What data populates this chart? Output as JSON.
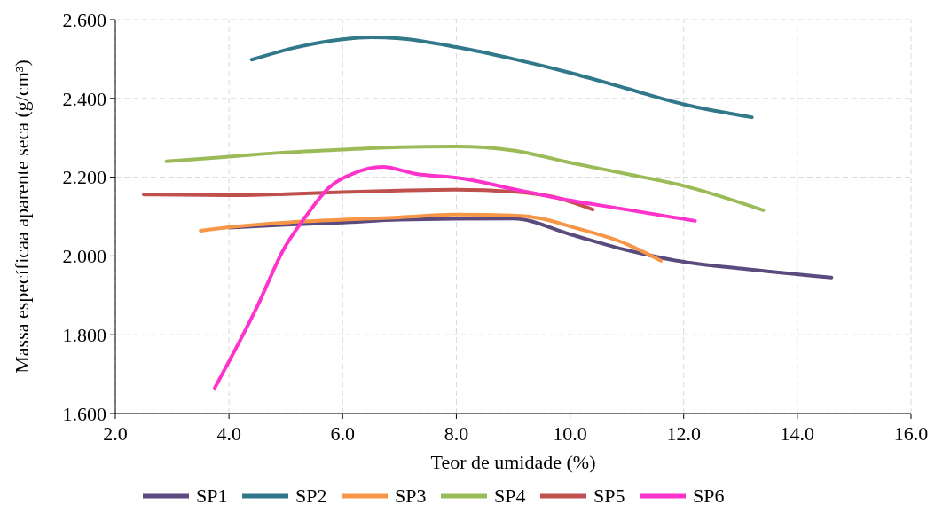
{
  "chart_data": {
    "type": "line",
    "xlabel": "Teor de umidade (%)",
    "ylabel": "Massa  específicaa aparente seca (g/cm³)",
    "xlim": [
      2,
      16
    ],
    "xticks": [
      {
        "value": 2,
        "label": "2.0"
      },
      {
        "value": 4,
        "label": "4.0"
      },
      {
        "value": 6,
        "label": "6.0"
      },
      {
        "value": 8,
        "label": "8.0"
      },
      {
        "value": 10,
        "label": "10.0"
      },
      {
        "value": 12,
        "label": "12.0"
      },
      {
        "value": 14,
        "label": "14.0"
      },
      {
        "value": 16,
        "label": "16.0"
      }
    ],
    "ylim": [
      1.6,
      2.6
    ],
    "yticks": [
      {
        "value": 1.6,
        "label": "1.600"
      },
      {
        "value": 1.8,
        "label": "1.800"
      },
      {
        "value": 2.0,
        "label": "2.000"
      },
      {
        "value": 2.2,
        "label": "2.200"
      },
      {
        "value": 2.4,
        "label": "2.400"
      },
      {
        "value": 2.6,
        "label": "2.600"
      }
    ],
    "grid": true,
    "legend": "bottom",
    "line_style": "solid",
    "marker": "none",
    "series": [
      {
        "name": "SP1",
        "color": "#5b4a7d",
        "x": [
          4.0,
          5.0,
          6.0,
          7.0,
          9.0,
          10.0,
          11.0,
          12.0,
          13.0,
          14.6
        ],
        "values": [
          2.072,
          2.079,
          2.085,
          2.092,
          2.095,
          2.055,
          2.015,
          1.985,
          1.968,
          1.945
        ]
      },
      {
        "name": "SP2",
        "color": "#31788a",
        "x": [
          4.4,
          5.2,
          6.0,
          6.5,
          7.0,
          8.0,
          9.0,
          10.0,
          11.0,
          12.0,
          13.2
        ],
        "values": [
          2.498,
          2.53,
          2.55,
          2.555,
          2.552,
          2.53,
          2.5,
          2.465,
          2.425,
          2.385,
          2.352
        ]
      },
      {
        "name": "SP3",
        "color": "#f79646",
        "x": [
          3.5,
          4.0,
          5.0,
          6.0,
          7.0,
          8.0,
          9.0,
          9.5,
          10.0,
          11.0,
          11.6
        ],
        "values": [
          2.064,
          2.073,
          2.085,
          2.092,
          2.098,
          2.105,
          2.103,
          2.095,
          2.075,
          2.03,
          1.988
        ]
      },
      {
        "name": "SP4",
        "color": "#9bbb59",
        "x": [
          2.9,
          4.0,
          5.0,
          6.0,
          7.0,
          8.0,
          9.0,
          10.0,
          11.0,
          12.0,
          13.4
        ],
        "values": [
          2.24,
          2.252,
          2.263,
          2.27,
          2.276,
          2.278,
          2.268,
          2.237,
          2.208,
          2.178,
          2.116
        ]
      },
      {
        "name": "SP5",
        "color": "#c0504d",
        "x": [
          2.5,
          4.0,
          5.0,
          6.0,
          7.0,
          8.0,
          9.0,
          9.7,
          10.4
        ],
        "values": [
          2.156,
          2.154,
          2.157,
          2.162,
          2.166,
          2.168,
          2.163,
          2.15,
          2.118
        ]
      },
      {
        "name": "SP6",
        "color": "#ff33cc",
        "x": [
          3.75,
          4.5,
          4.97,
          5.36,
          5.75,
          6.2,
          6.7,
          7.3,
          8.1,
          9.0,
          10.0,
          10.9,
          12.2
        ],
        "values": [
          1.665,
          1.873,
          2.019,
          2.102,
          2.172,
          2.21,
          2.226,
          2.208,
          2.197,
          2.17,
          2.141,
          2.12,
          2.089
        ]
      }
    ]
  }
}
